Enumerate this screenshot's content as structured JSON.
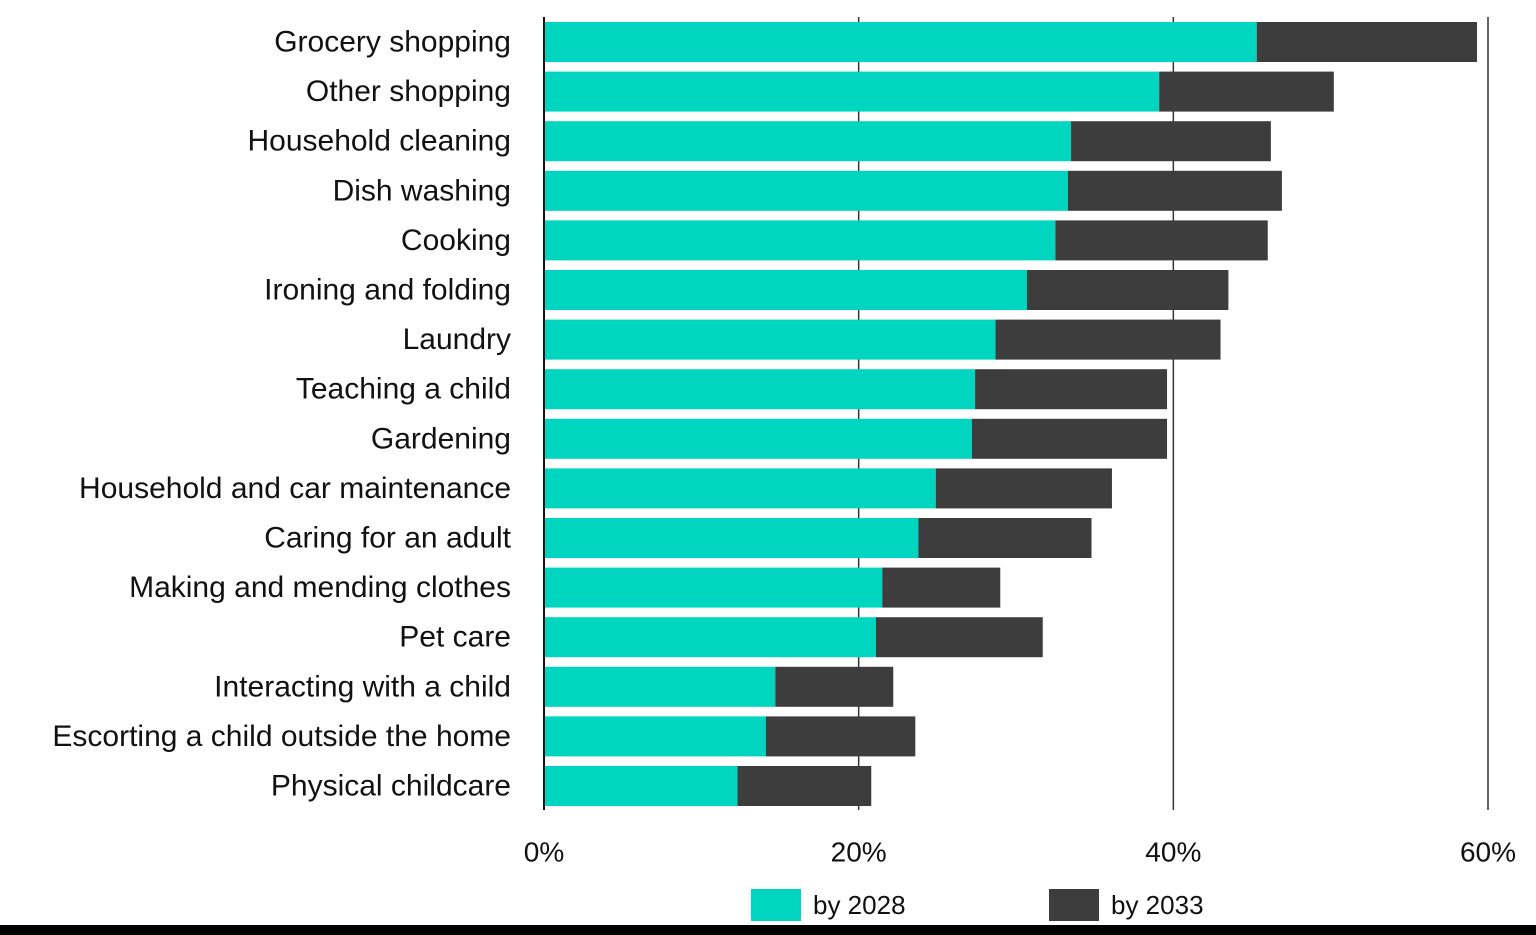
{
  "chart_data": {
    "type": "bar",
    "orientation": "horizontal",
    "stacked": true,
    "title": "",
    "xlabel": "",
    "ylabel": "",
    "xlim": [
      0,
      60
    ],
    "x_ticks": [
      0,
      20,
      40,
      60
    ],
    "x_tick_labels": [
      "0%",
      "20%",
      "40%",
      "60%"
    ],
    "grid": "vertical",
    "legend_position": "bottom-center",
    "categories": [
      "Grocery shopping",
      "Other shopping",
      "Household cleaning",
      "Dish washing",
      "Cooking",
      "Ironing and folding",
      "Laundry",
      "Teaching a child",
      "Gardening",
      "Household and car maintenance",
      "Caring for an adult",
      "Making and mending clothes",
      "Pet care",
      "Interacting with a child",
      "Escorting a child outside the home",
      "Physical childcare"
    ],
    "series": [
      {
        "name": "by 2028",
        "color": "#00d5c0",
        "values": [
          45.3,
          39.1,
          33.5,
          33.3,
          32.5,
          30.7,
          28.7,
          27.4,
          27.2,
          24.9,
          23.8,
          21.5,
          21.1,
          14.7,
          14.1,
          12.3
        ]
      },
      {
        "name": "by 2033",
        "color": "#3d3d3d",
        "values": [
          14.0,
          11.1,
          12.7,
          13.6,
          13.5,
          12.8,
          14.3,
          12.2,
          12.4,
          11.2,
          11.0,
          7.5,
          10.6,
          7.5,
          9.5,
          8.5
        ]
      }
    ]
  }
}
